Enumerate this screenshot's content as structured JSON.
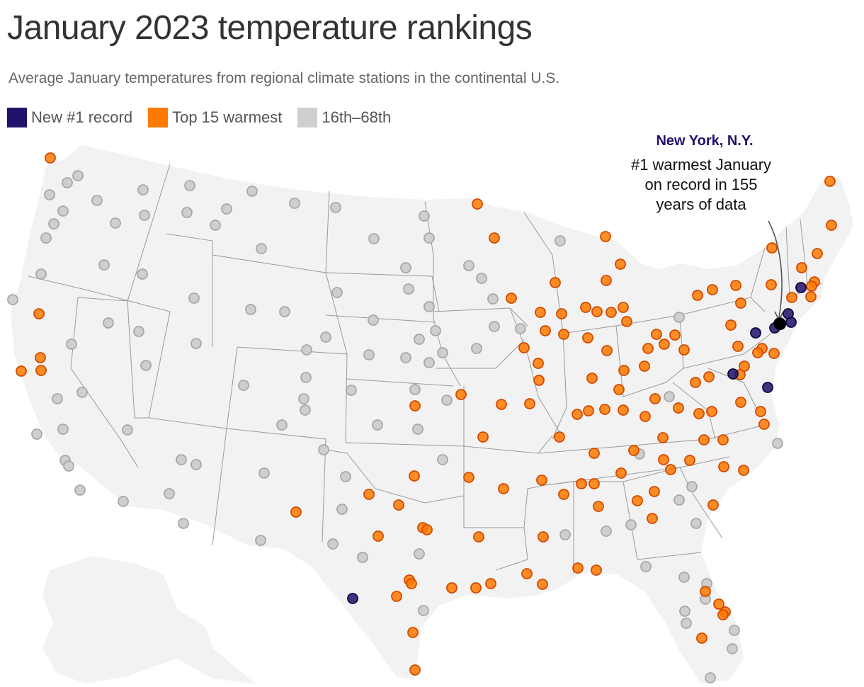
{
  "title": "January 2023 temperature rankings",
  "subtitle": "Average January temperatures from regional climate stations in the continental U.S.",
  "legend": [
    {
      "label": "New #1 record",
      "color": "#22116b",
      "category": "record"
    },
    {
      "label": "Top 15 warmest",
      "color": "#ff7a00",
      "category": "top15"
    },
    {
      "label": "16th–68th",
      "color": "#cfcfcf",
      "category": "other"
    }
  ],
  "annotation": {
    "city": "New York, N.Y.",
    "text": "#1 warmest January\non record in 155\nyears of data"
  },
  "colors": {
    "land": "#f2f2f2",
    "borders": "#9a9a9a",
    "record": "#22116b",
    "top15": "#ff7a00",
    "other": "#cfcfcf"
  },
  "map_summary": {
    "record_station_count": 10,
    "record_locations": [
      "New York, N.Y. and nearby stations",
      "Massachusetts coast",
      "Pennsylvania",
      "Washington, D.C. area",
      "Delaware / Maryland coast",
      "South Texas (Rio Grande)"
    ]
  }
}
